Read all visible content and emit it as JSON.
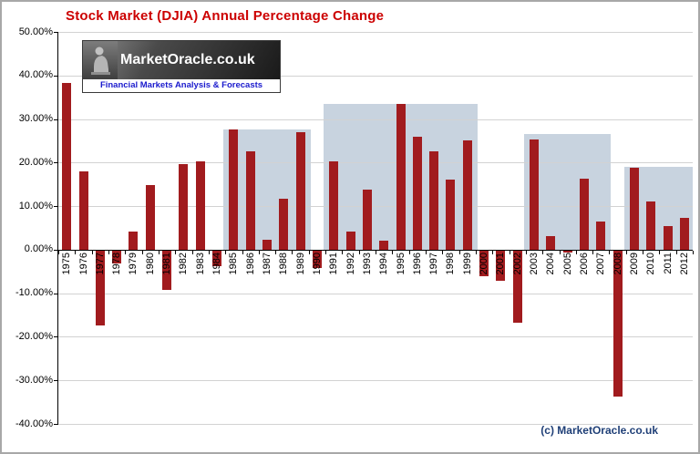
{
  "chart_data": {
    "type": "bar",
    "title": "Stock Market (DJIA) Annual Percentage Change",
    "xlabel": "",
    "ylabel": "",
    "categories": [
      "1975",
      "1976",
      "1977",
      "1978",
      "1979",
      "1980",
      "1981",
      "1982",
      "1983",
      "1984",
      "1985",
      "1986",
      "1987",
      "1988",
      "1989",
      "1990",
      "1991",
      "1992",
      "1993",
      "1994",
      "1995",
      "1996",
      "1997",
      "1998",
      "1999",
      "2000",
      "2001",
      "2002",
      "2003",
      "2004",
      "2005",
      "2006",
      "2007",
      "2008",
      "2009",
      "2010",
      "2011",
      "2012"
    ],
    "values": [
      38.3,
      17.9,
      -17.3,
      -3.1,
      4.2,
      14.9,
      -9.2,
      19.6,
      20.3,
      -3.7,
      27.7,
      22.6,
      2.3,
      11.8,
      27.0,
      -4.3,
      20.3,
      4.2,
      13.7,
      2.1,
      33.5,
      26.0,
      22.6,
      16.1,
      25.2,
      -6.2,
      -7.1,
      -16.8,
      25.3,
      3.1,
      -0.6,
      16.3,
      6.4,
      -33.8,
      18.8,
      11.0,
      5.5,
      7.3
    ],
    "ylim": [
      -40,
      50
    ],
    "yticks": [
      50,
      40,
      30,
      20,
      10,
      0,
      -10,
      -20,
      -30,
      -40
    ],
    "ytick_labels": [
      "50.00%",
      "40.00%",
      "30.00%",
      "20.00%",
      "10.00%",
      "0.00%",
      "-10.00%",
      "-20.00%",
      "-30.00%",
      "-40.00%"
    ],
    "grid": true,
    "legend": null,
    "bands": [
      {
        "from": "1985",
        "to": "1989",
        "top": 27.7,
        "to_edge": false
      },
      {
        "from": "1991",
        "to": "1999",
        "top": 33.5,
        "to_edge": false
      },
      {
        "from": "2003",
        "to": "2007",
        "top": 26.5,
        "to_edge": false
      },
      {
        "from": "2009",
        "to": "2012",
        "top": 19.0,
        "to_edge": true
      }
    ]
  },
  "watermark": {
    "logo_text": "MarketOracle.co.uk",
    "tagline": "Financial Markets Analysis & Forecasts"
  },
  "footer_credit": "(c) MarketOracle.co.uk",
  "colors": {
    "title": "#cc0000",
    "bar": "#a11b1e",
    "band": "#c8d3df",
    "grid": "#d2d2d2",
    "axis": "#000000",
    "credit": "#1f3f77",
    "tagline": "#1a1acd"
  }
}
